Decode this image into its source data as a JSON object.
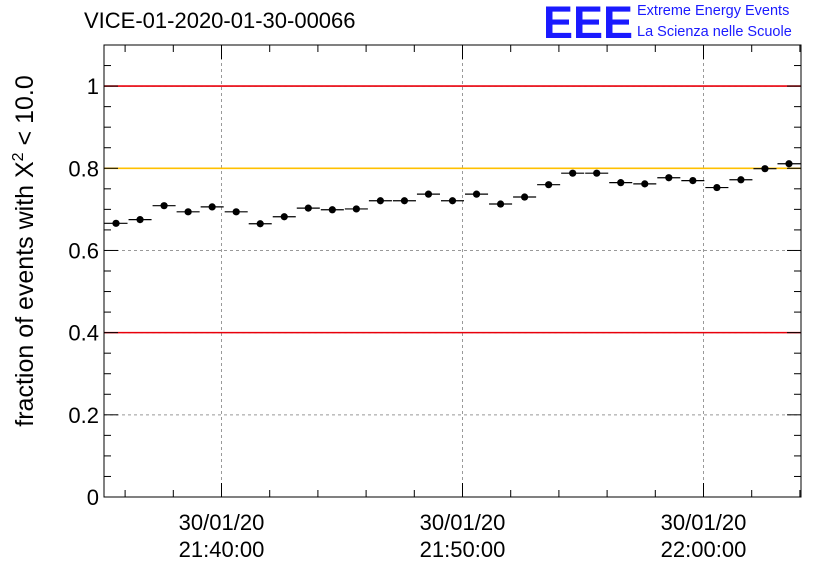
{
  "header": {
    "title": "VICE-01-2020-01-30-00066",
    "logo_text": "EEE",
    "logo_line1": "Extreme Energy Events",
    "logo_line2": "La Scienza nelle Scuole"
  },
  "colors": {
    "logo": "#1a1aff",
    "ref_red": "#e8000b",
    "ref_yellow": "#ffc000",
    "grid": "#999999",
    "marker": "#000000"
  },
  "chart_data": {
    "type": "scatter",
    "title": "VICE-01-2020-01-30-00066",
    "ylabel_parts": {
      "prefix": "fraction of events with ",
      "symbol": "X",
      "sup": "2",
      "suffix": " < 10.0"
    },
    "xlabel": "",
    "y_tick_labels": [
      "0",
      "0.2",
      "0.4",
      "0.6",
      "0.8",
      "1"
    ],
    "ylim": [
      0,
      1.1
    ],
    "x_tick_labels": [
      {
        "date": "30/01/20",
        "time": "21:40:00"
      },
      {
        "date": "30/01/20",
        "time": "21:50:00"
      },
      {
        "date": "30/01/20",
        "time": "22:00:00"
      }
    ],
    "grid": true,
    "reference_lines": [
      {
        "y": 1.0,
        "color": "#e8000b"
      },
      {
        "y": 0.8,
        "color": "#ffc000"
      },
      {
        "y": 0.4,
        "color": "#e8000b"
      }
    ],
    "bins": 29,
    "values": [
      0.666,
      0.675,
      0.709,
      0.694,
      0.706,
      0.694,
      0.665,
      0.682,
      0.703,
      0.699,
      0.701,
      0.721,
      0.721,
      0.737,
      0.721,
      0.737,
      0.713,
      0.73,
      0.76,
      0.788,
      0.788,
      0.765,
      0.762,
      0.777,
      0.77,
      0.753,
      0.772,
      0.799,
      0.811
    ]
  }
}
